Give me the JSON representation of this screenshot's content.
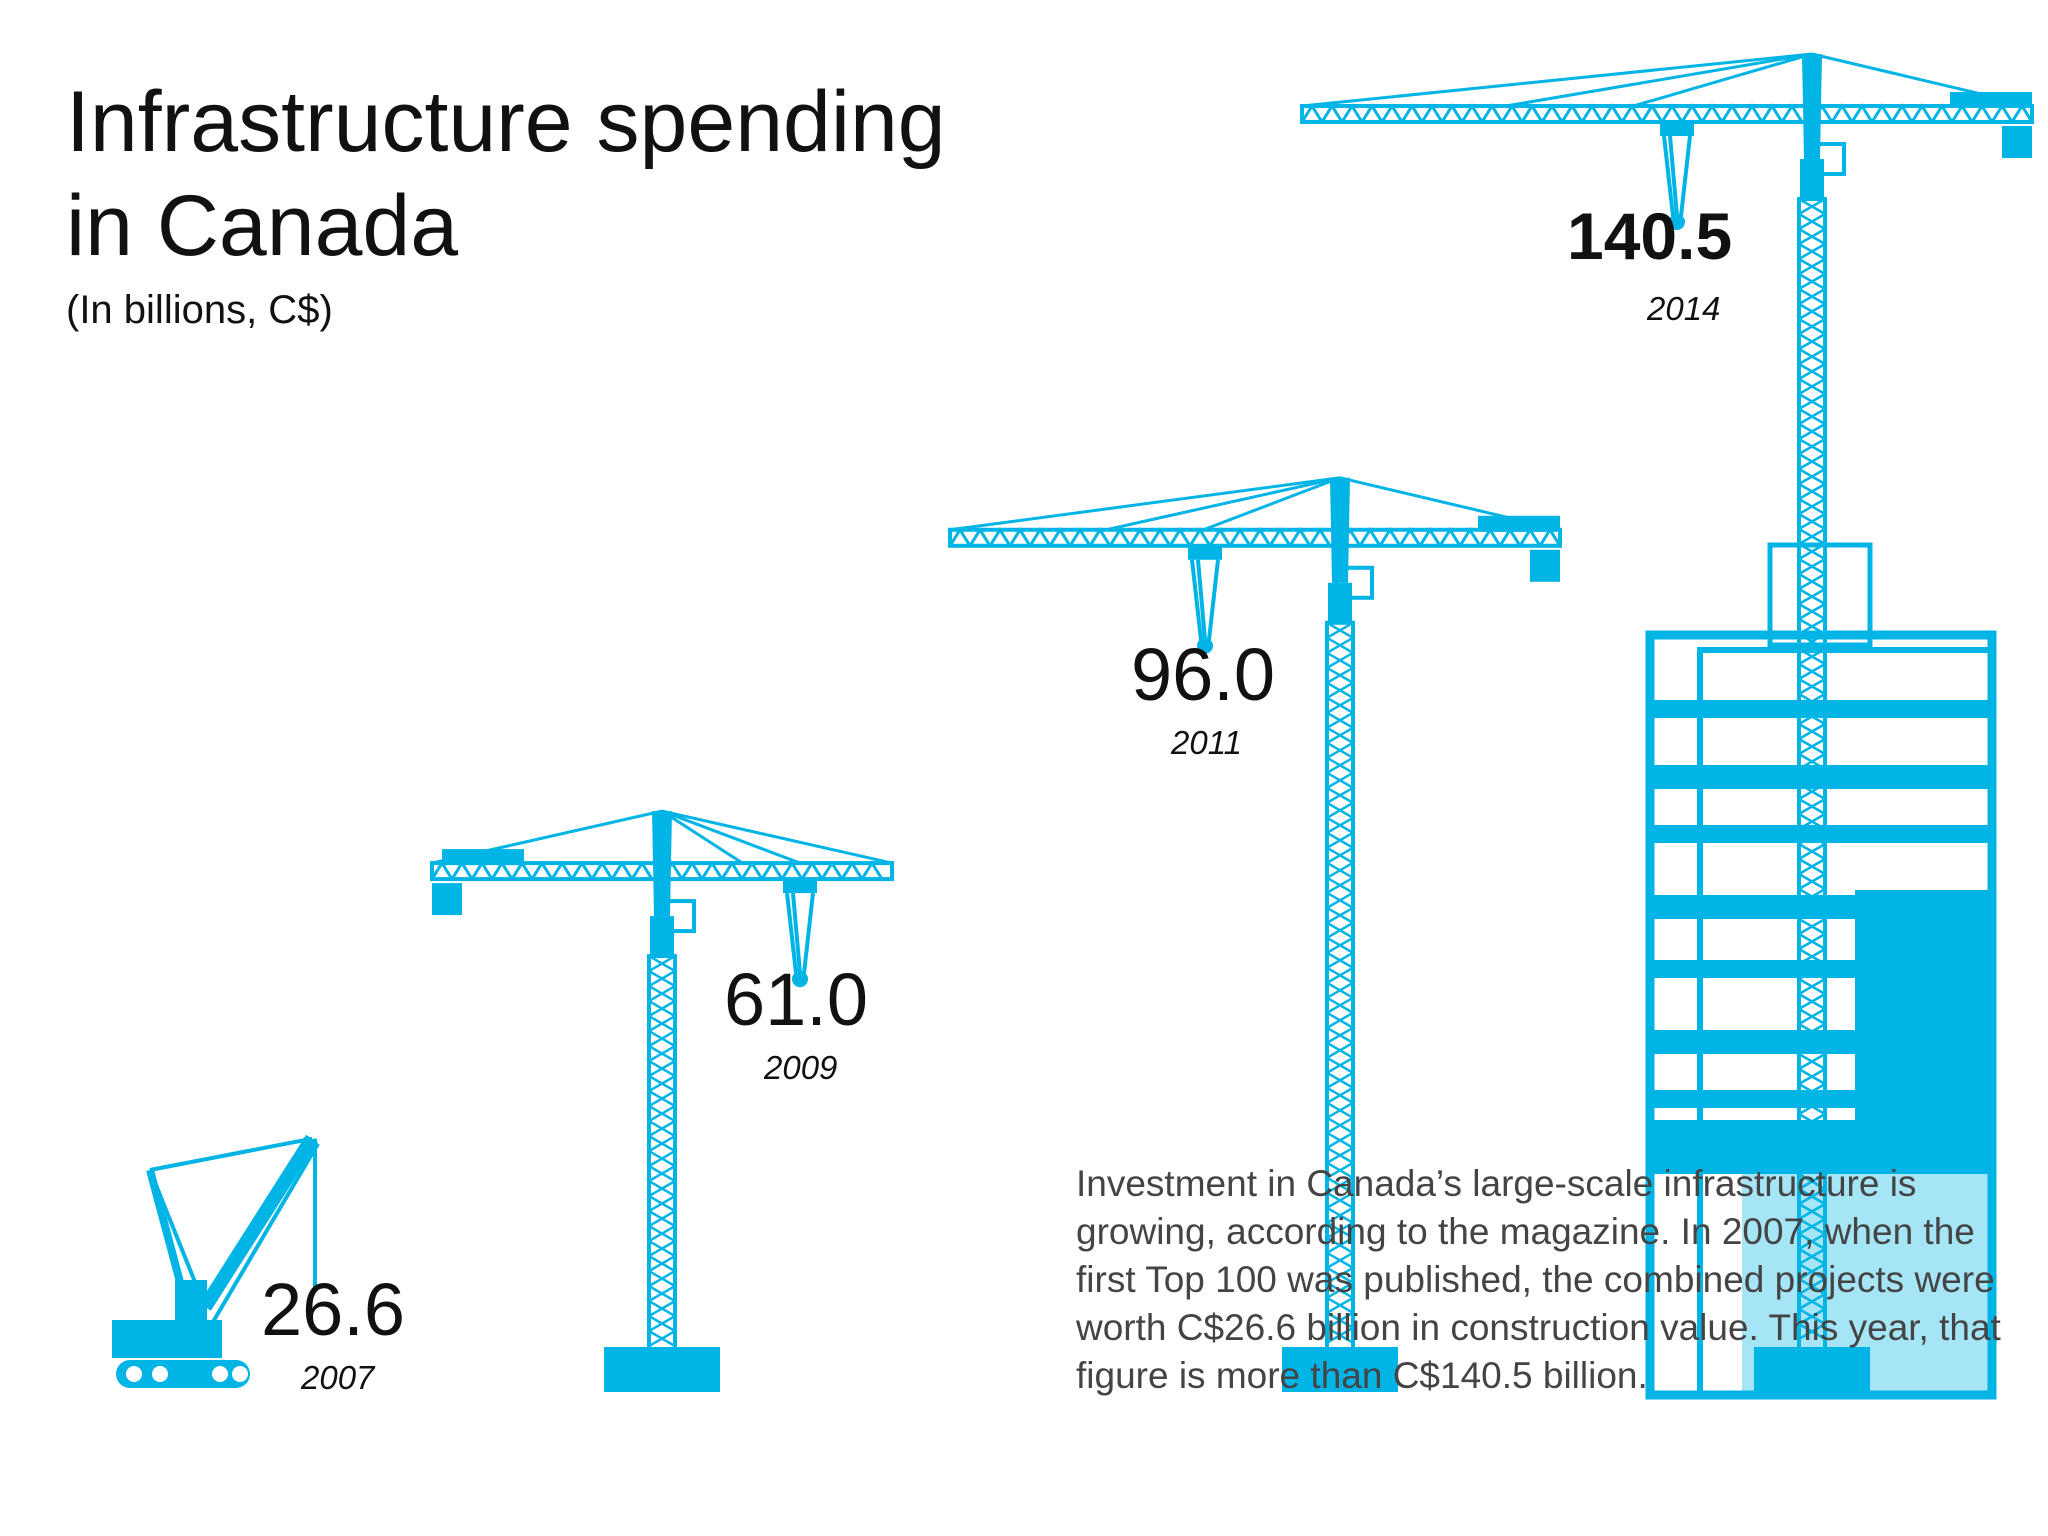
{
  "title": "Infrastructure spending in Canada",
  "subtitle": "(In billions, C$)",
  "description": "Investment in Canada’s large-scale infrastructure is growing, according to the magazine. In 2007, when the first Top 100 was published, the combined projects were worth C$26.6 billion in construction value. This year, that figure is more than C$140.5 billion.",
  "colors": {
    "crane": "#00b4e6",
    "text": "#111111",
    "description": "#444444"
  },
  "chart_data": {
    "type": "bar",
    "title": "Infrastructure spending in Canada",
    "subtitle": "(In billions, C$)",
    "categories": [
      "2007",
      "2009",
      "2011",
      "2014"
    ],
    "values": [
      26.6,
      61.0,
      96.0,
      140.5
    ],
    "value_labels": [
      "26.6",
      "61.0",
      "96.0",
      "140.5"
    ],
    "mark_icons": [
      "crawler-crane-icon",
      "tower-crane-icon",
      "tower-crane-icon",
      "tower-crane-icon"
    ],
    "xlabel": "",
    "ylabel": "",
    "grid": false,
    "legend": "none"
  }
}
